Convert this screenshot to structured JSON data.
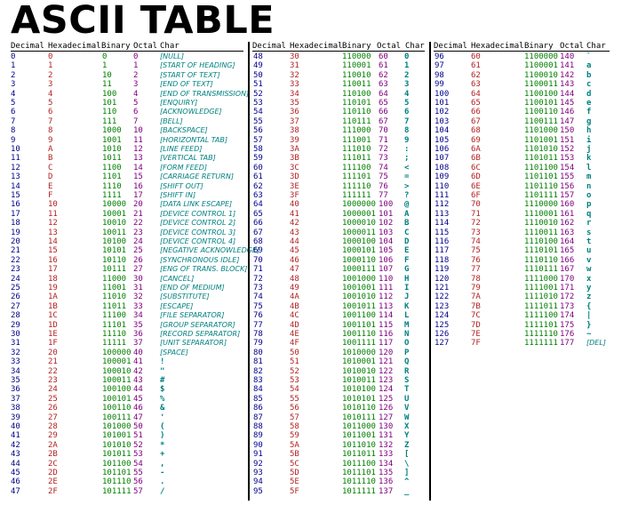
{
  "title": "ASCII TABLE",
  "headers": {
    "decimal": "Decimal",
    "hex": "Hexadecimal",
    "binary": "Binary",
    "octal": "Octal",
    "char": "Char"
  },
  "colors": {
    "decimal": "#00008b",
    "hex": "#b22222",
    "binary": "#008000",
    "octal": "#800080",
    "char": "#008080"
  },
  "sections": [
    {
      "rows": [
        [
          "0",
          "0",
          "0",
          "0",
          "[NULL]"
        ],
        [
          "1",
          "1",
          "1",
          "1",
          "[START OF HEADING]"
        ],
        [
          "2",
          "2",
          "10",
          "2",
          "[START OF TEXT]"
        ],
        [
          "3",
          "3",
          "11",
          "3",
          "[END OF TEXT]"
        ],
        [
          "4",
          "4",
          "100",
          "4",
          "[END OF TRANSMISSION]"
        ],
        [
          "5",
          "5",
          "101",
          "5",
          "[ENQUIRY]"
        ],
        [
          "6",
          "6",
          "110",
          "6",
          "[ACKNOWLEDGE]"
        ],
        [
          "7",
          "7",
          "111",
          "7",
          "[BELL]"
        ],
        [
          "8",
          "8",
          "1000",
          "10",
          "[BACKSPACE]"
        ],
        [
          "9",
          "9",
          "1001",
          "11",
          "[HORIZONTAL TAB]"
        ],
        [
          "10",
          "A",
          "1010",
          "12",
          "[LINE FEED]"
        ],
        [
          "11",
          "B",
          "1011",
          "13",
          "[VERTICAL TAB]"
        ],
        [
          "12",
          "C",
          "1100",
          "14",
          "[FORM FEED]"
        ],
        [
          "13",
          "D",
          "1101",
          "15",
          "[CARRIAGE RETURN]"
        ],
        [
          "14",
          "E",
          "1110",
          "16",
          "[SHIFT OUT]"
        ],
        [
          "15",
          "F",
          "1111",
          "17",
          "[SHIFT IN]"
        ],
        [
          "16",
          "10",
          "10000",
          "20",
          "[DATA LINK ESCAPE]"
        ],
        [
          "17",
          "11",
          "10001",
          "21",
          "[DEVICE CONTROL 1]"
        ],
        [
          "18",
          "12",
          "10010",
          "22",
          "[DEVICE CONTROL 2]"
        ],
        [
          "19",
          "13",
          "10011",
          "23",
          "[DEVICE CONTROL 3]"
        ],
        [
          "20",
          "14",
          "10100",
          "24",
          "[DEVICE CONTROL 4]"
        ],
        [
          "21",
          "15",
          "10101",
          "25",
          "[NEGATIVE ACKNOWLEDGE]"
        ],
        [
          "22",
          "16",
          "10110",
          "26",
          "[SYNCHRONOUS IDLE]"
        ],
        [
          "23",
          "17",
          "10111",
          "27",
          "[ENG OF TRANS. BLOCK]"
        ],
        [
          "24",
          "18",
          "11000",
          "30",
          "[CANCEL]"
        ],
        [
          "25",
          "19",
          "11001",
          "31",
          "[END OF MEDIUM]"
        ],
        [
          "26",
          "1A",
          "11010",
          "32",
          "[SUBSTITUTE]"
        ],
        [
          "27",
          "1B",
          "11011",
          "33",
          "[ESCAPE]"
        ],
        [
          "28",
          "1C",
          "11100",
          "34",
          "[FILE SEPARATOR]"
        ],
        [
          "29",
          "1D",
          "11101",
          "35",
          "[GROUP SEPARATOR]"
        ],
        [
          "30",
          "1E",
          "11110",
          "36",
          "[RECORD SEPARATOR]"
        ],
        [
          "31",
          "1F",
          "11111",
          "37",
          "[UNIT SEPARATOR]"
        ],
        [
          "32",
          "20",
          "100000",
          "40",
          "[SPACE]"
        ],
        [
          "33",
          "21",
          "100001",
          "41",
          "!"
        ],
        [
          "34",
          "22",
          "100010",
          "42",
          "\""
        ],
        [
          "35",
          "23",
          "100011",
          "43",
          "#"
        ],
        [
          "36",
          "24",
          "100100",
          "44",
          "$"
        ],
        [
          "37",
          "25",
          "100101",
          "45",
          "%"
        ],
        [
          "38",
          "26",
          "100110",
          "46",
          "&"
        ],
        [
          "39",
          "27",
          "100111",
          "47",
          "'"
        ],
        [
          "40",
          "28",
          "101000",
          "50",
          "("
        ],
        [
          "41",
          "29",
          "101001",
          "51",
          ")"
        ],
        [
          "42",
          "2A",
          "101010",
          "52",
          "*"
        ],
        [
          "43",
          "2B",
          "101011",
          "53",
          "+"
        ],
        [
          "44",
          "2C",
          "101100",
          "54",
          ","
        ],
        [
          "45",
          "2D",
          "101101",
          "55",
          "-"
        ],
        [
          "46",
          "2E",
          "101110",
          "56",
          "."
        ],
        [
          "47",
          "2F",
          "101111",
          "57",
          "/"
        ]
      ]
    },
    {
      "rows": [
        [
          "48",
          "30",
          "110000",
          "60",
          "0"
        ],
        [
          "49",
          "31",
          "110001",
          "61",
          "1"
        ],
        [
          "50",
          "32",
          "110010",
          "62",
          "2"
        ],
        [
          "51",
          "33",
          "110011",
          "63",
          "3"
        ],
        [
          "52",
          "34",
          "110100",
          "64",
          "4"
        ],
        [
          "53",
          "35",
          "110101",
          "65",
          "5"
        ],
        [
          "54",
          "36",
          "110110",
          "66",
          "6"
        ],
        [
          "55",
          "37",
          "110111",
          "67",
          "7"
        ],
        [
          "56",
          "38",
          "111000",
          "70",
          "8"
        ],
        [
          "57",
          "39",
          "111001",
          "71",
          "9"
        ],
        [
          "58",
          "3A",
          "111010",
          "72",
          ":"
        ],
        [
          "59",
          "3B",
          "111011",
          "73",
          ";"
        ],
        [
          "60",
          "3C",
          "111100",
          "74",
          "<"
        ],
        [
          "61",
          "3D",
          "111101",
          "75",
          "="
        ],
        [
          "62",
          "3E",
          "111110",
          "76",
          ">"
        ],
        [
          "63",
          "3F",
          "111111",
          "77",
          "?"
        ],
        [
          "64",
          "40",
          "1000000",
          "100",
          "@"
        ],
        [
          "65",
          "41",
          "1000001",
          "101",
          "A"
        ],
        [
          "66",
          "42",
          "1000010",
          "102",
          "B"
        ],
        [
          "67",
          "43",
          "1000011",
          "103",
          "C"
        ],
        [
          "68",
          "44",
          "1000100",
          "104",
          "D"
        ],
        [
          "69",
          "45",
          "1000101",
          "105",
          "E"
        ],
        [
          "70",
          "46",
          "1000110",
          "106",
          "F"
        ],
        [
          "71",
          "47",
          "1000111",
          "107",
          "G"
        ],
        [
          "72",
          "48",
          "1001000",
          "110",
          "H"
        ],
        [
          "73",
          "49",
          "1001001",
          "111",
          "I"
        ],
        [
          "74",
          "4A",
          "1001010",
          "112",
          "J"
        ],
        [
          "75",
          "4B",
          "1001011",
          "113",
          "K"
        ],
        [
          "76",
          "4C",
          "1001100",
          "114",
          "L"
        ],
        [
          "77",
          "4D",
          "1001101",
          "115",
          "M"
        ],
        [
          "78",
          "4E",
          "1001110",
          "116",
          "N"
        ],
        [
          "79",
          "4F",
          "1001111",
          "117",
          "O"
        ],
        [
          "80",
          "50",
          "1010000",
          "120",
          "P"
        ],
        [
          "81",
          "51",
          "1010001",
          "121",
          "Q"
        ],
        [
          "82",
          "52",
          "1010010",
          "122",
          "R"
        ],
        [
          "83",
          "53",
          "1010011",
          "123",
          "S"
        ],
        [
          "84",
          "54",
          "1010100",
          "124",
          "T"
        ],
        [
          "85",
          "55",
          "1010101",
          "125",
          "U"
        ],
        [
          "86",
          "56",
          "1010110",
          "126",
          "V"
        ],
        [
          "87",
          "57",
          "1010111",
          "127",
          "W"
        ],
        [
          "88",
          "58",
          "1011000",
          "130",
          "X"
        ],
        [
          "89",
          "59",
          "1011001",
          "131",
          "Y"
        ],
        [
          "90",
          "5A",
          "1011010",
          "132",
          "Z"
        ],
        [
          "91",
          "5B",
          "1011011",
          "133",
          "["
        ],
        [
          "92",
          "5C",
          "1011100",
          "134",
          "\\"
        ],
        [
          "93",
          "5D",
          "1011101",
          "135",
          "]"
        ],
        [
          "94",
          "5E",
          "1011110",
          "136",
          "^"
        ],
        [
          "95",
          "5F",
          "1011111",
          "137",
          "_"
        ]
      ]
    },
    {
      "rows": [
        [
          "96",
          "60",
          "1100000",
          "140",
          "`"
        ],
        [
          "97",
          "61",
          "1100001",
          "141",
          "a"
        ],
        [
          "98",
          "62",
          "1100010",
          "142",
          "b"
        ],
        [
          "99",
          "63",
          "1100011",
          "143",
          "c"
        ],
        [
          "100",
          "64",
          "1100100",
          "144",
          "d"
        ],
        [
          "101",
          "65",
          "1100101",
          "145",
          "e"
        ],
        [
          "102",
          "66",
          "1100110",
          "146",
          "f"
        ],
        [
          "103",
          "67",
          "1100111",
          "147",
          "g"
        ],
        [
          "104",
          "68",
          "1101000",
          "150",
          "h"
        ],
        [
          "105",
          "69",
          "1101001",
          "151",
          "i"
        ],
        [
          "106",
          "6A",
          "1101010",
          "152",
          "j"
        ],
        [
          "107",
          "6B",
          "1101011",
          "153",
          "k"
        ],
        [
          "108",
          "6C",
          "1101100",
          "154",
          "l"
        ],
        [
          "109",
          "6D",
          "1101101",
          "155",
          "m"
        ],
        [
          "110",
          "6E",
          "1101110",
          "156",
          "n"
        ],
        [
          "111",
          "6F",
          "1101111",
          "157",
          "o"
        ],
        [
          "112",
          "70",
          "1110000",
          "160",
          "p"
        ],
        [
          "113",
          "71",
          "1110001",
          "161",
          "q"
        ],
        [
          "114",
          "72",
          "1110010",
          "162",
          "r"
        ],
        [
          "115",
          "73",
          "1110011",
          "163",
          "s"
        ],
        [
          "116",
          "74",
          "1110100",
          "164",
          "t"
        ],
        [
          "117",
          "75",
          "1110101",
          "165",
          "u"
        ],
        [
          "118",
          "76",
          "1110110",
          "166",
          "v"
        ],
        [
          "119",
          "77",
          "1110111",
          "167",
          "w"
        ],
        [
          "120",
          "78",
          "1111000",
          "170",
          "x"
        ],
        [
          "121",
          "79",
          "1111001",
          "171",
          "y"
        ],
        [
          "122",
          "7A",
          "1111010",
          "172",
          "z"
        ],
        [
          "123",
          "7B",
          "1111011",
          "173",
          "{"
        ],
        [
          "124",
          "7C",
          "1111100",
          "174",
          "|"
        ],
        [
          "125",
          "7D",
          "1111101",
          "175",
          "}"
        ],
        [
          "126",
          "7E",
          "1111110",
          "176",
          "~"
        ],
        [
          "127",
          "7F",
          "1111111",
          "177",
          "[DEL]"
        ]
      ]
    }
  ]
}
